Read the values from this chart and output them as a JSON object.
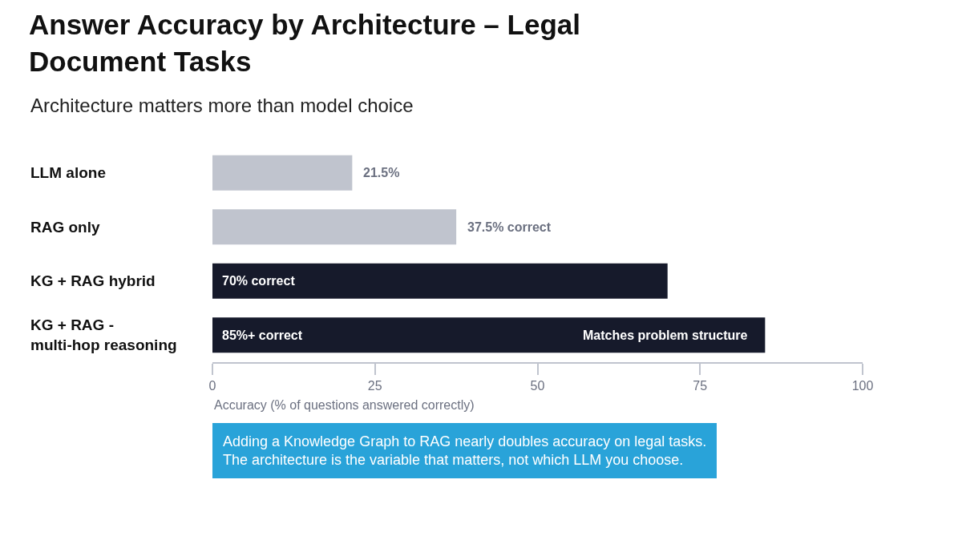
{
  "chart_data": {
    "type": "bar",
    "orientation": "horizontal",
    "title": "Answer Accuracy by Architecture – Legal\nDocument Tasks",
    "subtitle": "Architecture matters more than model choice",
    "xlabel": "Accuracy (% of questions answered correctly)",
    "categories": [
      "LLM alone",
      "RAG only",
      "KG + RAG hybrid",
      "KG + RAG -\nmulti-hop reasoning"
    ],
    "values": [
      21.5,
      37.5,
      70,
      85
    ],
    "colors": [
      "#c0c4ce",
      "#c0c4ce",
      "#161a2b",
      "#161a2b"
    ],
    "value_labels": [
      "21.5%",
      "37.5% correct",
      "70% correct",
      "85%+ correct"
    ],
    "xlim": [
      0,
      100
    ],
    "xticks": [
      0,
      25,
      50,
      75,
      100
    ],
    "grid": false,
    "legend": false,
    "annotations": [
      {
        "text": "Matches problem structure",
        "x": 85,
        "y": "KG + RAG -\nmulti-hop reasoning"
      },
      "Adding a Knowledge Graph to RAG nearly doubles accuracy on legal tasks.\nThe architecture is the variable that matters, not which LLM you choose."
    ]
  }
}
